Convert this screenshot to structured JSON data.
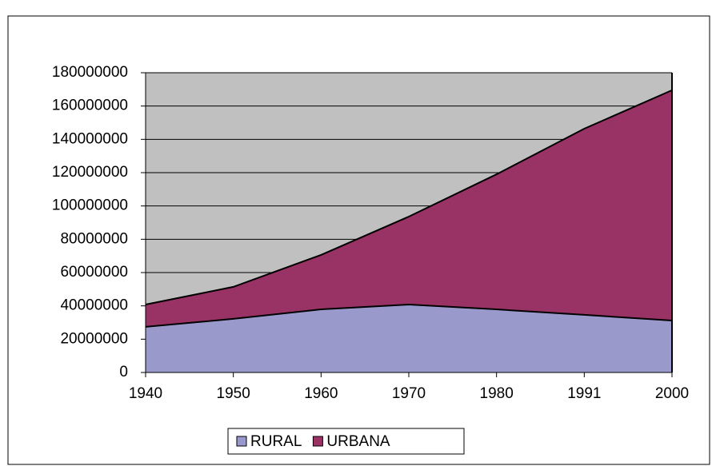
{
  "chart_data": {
    "type": "stacked_area",
    "categories": [
      "1940",
      "1950",
      "1960",
      "1970",
      "1980",
      "1991",
      "2000"
    ],
    "series": [
      {
        "name": "RURAL",
        "color": "#9999cc",
        "values": [
          27400000,
          32200000,
          37900000,
          40800000,
          37900000,
          34600000,
          31200000
        ]
      },
      {
        "name": "URBANA",
        "color": "#993366",
        "values": [
          13400000,
          19200000,
          32700000,
          52800000,
          81100000,
          111800000,
          138300000
        ]
      }
    ],
    "ylim": [
      0,
      180000000
    ],
    "yticks": [
      0,
      20000000,
      40000000,
      60000000,
      80000000,
      100000000,
      120000000,
      140000000,
      160000000,
      180000000
    ],
    "grid": true,
    "legend": "bottom"
  }
}
